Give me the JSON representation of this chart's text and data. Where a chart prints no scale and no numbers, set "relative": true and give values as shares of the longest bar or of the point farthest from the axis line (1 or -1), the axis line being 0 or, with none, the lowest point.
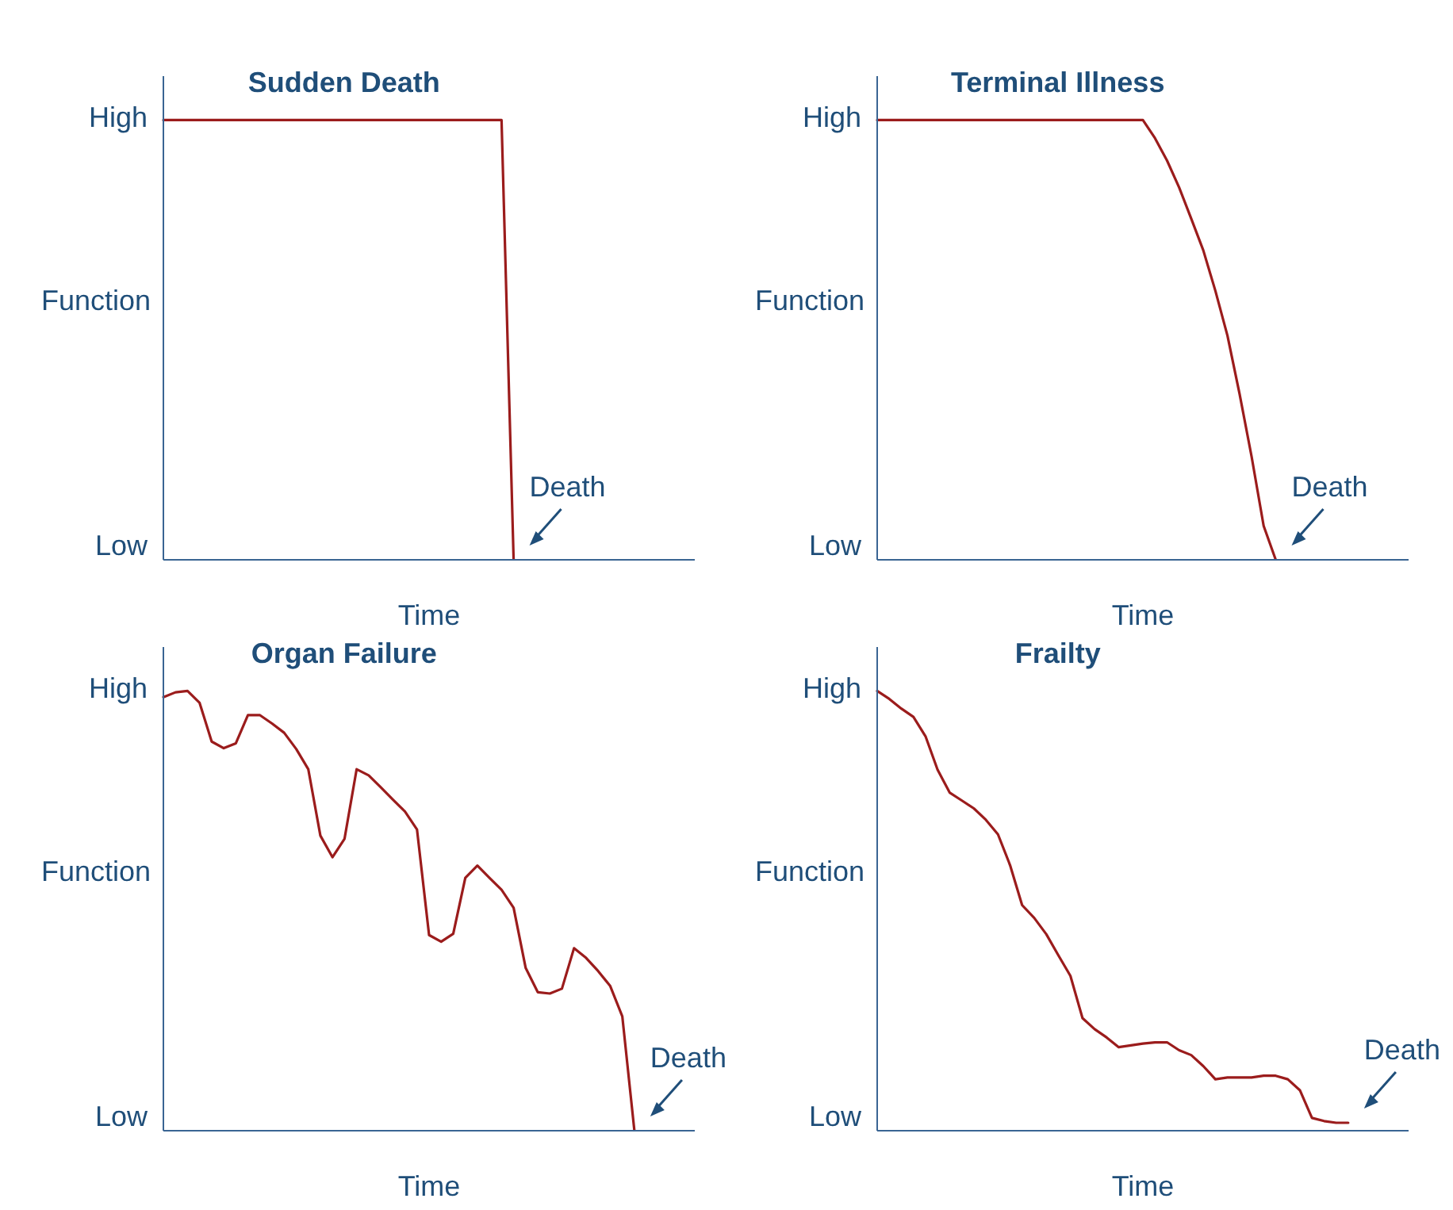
{
  "chart_data": [
    {
      "type": "line",
      "title": "Sudden Death",
      "xlabel": "Time",
      "ylabel": "Function",
      "relative": true,
      "categories": [
        null,
        null,
        null,
        null,
        null,
        null,
        null,
        null,
        null,
        null,
        null,
        null,
        null,
        null,
        null,
        null,
        null,
        null,
        null,
        null,
        null,
        null,
        null,
        null,
        null,
        null,
        null,
        null,
        null,
        null,
        null,
        null,
        null,
        null,
        null,
        null,
        null,
        null,
        null,
        null,
        null,
        null,
        null,
        null,
        null
      ],
      "series": [
        {
          "color": "#9b1c1c",
          "values": [
            1,
            1,
            1,
            1,
            1,
            1,
            1,
            1,
            1,
            1,
            1,
            1,
            1,
            1,
            1,
            1,
            1,
            1,
            1,
            1,
            1,
            1,
            1,
            1,
            1,
            1,
            1,
            1,
            1,
            0,
            null,
            null,
            null,
            null,
            null,
            null,
            null,
            null,
            null,
            null,
            null,
            null,
            null,
            null,
            null
          ]
        }
      ],
      "annotations": [
        "High",
        "Low",
        "Death"
      ]
    },
    {
      "type": "line",
      "title": "Terminal Illness",
      "xlabel": "Time",
      "ylabel": "Function",
      "relative": true,
      "categories": [
        null,
        null,
        null,
        null,
        null,
        null,
        null,
        null,
        null,
        null,
        null,
        null,
        null,
        null,
        null,
        null,
        null,
        null,
        null,
        null,
        null,
        null,
        null,
        null,
        null,
        null,
        null,
        null,
        null,
        null,
        null,
        null,
        null,
        null,
        null,
        null,
        null,
        null,
        null,
        null,
        null,
        null,
        null,
        null,
        null
      ],
      "series": [
        {
          "color": "#9b1c1c",
          "values": [
            1,
            1,
            1,
            1,
            1,
            1,
            1,
            1,
            1,
            1,
            1,
            1,
            1,
            1,
            1,
            1,
            1,
            1,
            1,
            1,
            1,
            1,
            1,
            0.959,
            0.908,
            0.847,
            0.776,
            0.704,
            0.612,
            0.51,
            0.378,
            0.235,
            0.077,
            0,
            null,
            null,
            null,
            null,
            null,
            null,
            null,
            null,
            null,
            null,
            null
          ]
        }
      ],
      "annotations": [
        "High",
        "Low",
        "Death"
      ]
    },
    {
      "type": "line",
      "title": "Organ Failure",
      "xlabel": "Time",
      "ylabel": "Function",
      "relative": true,
      "categories": [
        null,
        null,
        null,
        null,
        null,
        null,
        null,
        null,
        null,
        null,
        null,
        null,
        null,
        null,
        null,
        null,
        null,
        null,
        null,
        null,
        null,
        null,
        null,
        null,
        null,
        null,
        null,
        null,
        null,
        null,
        null,
        null,
        null,
        null,
        null,
        null,
        null,
        null,
        null,
        null,
        null,
        null,
        null,
        null,
        null
      ],
      "series": [
        {
          "color": "#9b1c1c",
          "values": [
            0.986,
            0.997,
            1,
            0.973,
            0.885,
            0.87,
            0.881,
            0.945,
            0.945,
            0.926,
            0.905,
            0.868,
            0.822,
            0.671,
            0.622,
            0.664,
            0.822,
            0.808,
            0.781,
            0.753,
            0.726,
            0.685,
            0.445,
            0.43,
            0.448,
            0.575,
            0.603,
            0.575,
            0.548,
            0.507,
            0.37,
            0.315,
            0.312,
            0.323,
            0.415,
            0.393,
            0.363,
            0.329,
            0.26,
            0,
            null,
            null,
            null,
            null,
            null
          ]
        }
      ],
      "annotations": [
        "High",
        "Low",
        "Death"
      ]
    },
    {
      "type": "line",
      "title": "Frailty",
      "xlabel": "Time",
      "ylabel": "Function",
      "relative": true,
      "categories": [
        null,
        null,
        null,
        null,
        null,
        null,
        null,
        null,
        null,
        null,
        null,
        null,
        null,
        null,
        null,
        null,
        null,
        null,
        null,
        null,
        null,
        null,
        null,
        null,
        null,
        null,
        null,
        null,
        null,
        null,
        null,
        null,
        null,
        null,
        null,
        null,
        null,
        null,
        null,
        null,
        null,
        null,
        null,
        null,
        null
      ],
      "series": [
        {
          "color": "#9b1c1c",
          "values": [
            1,
            0.982,
            0.96,
            0.941,
            0.897,
            0.821,
            0.769,
            0.751,
            0.733,
            0.707,
            0.674,
            0.604,
            0.513,
            0.484,
            0.447,
            0.399,
            0.352,
            0.256,
            0.231,
            0.212,
            0.19,
            0.194,
            0.198,
            0.201,
            0.201,
            0.183,
            0.172,
            0.147,
            0.117,
            0.121,
            0.121,
            0.121,
            0.125,
            0.125,
            0.117,
            0.092,
            0.029,
            0.022,
            0.018,
            0.018,
            null,
            null,
            null,
            null,
            null
          ]
        }
      ],
      "annotations": [
        "High",
        "Low",
        "Death"
      ]
    }
  ]
}
